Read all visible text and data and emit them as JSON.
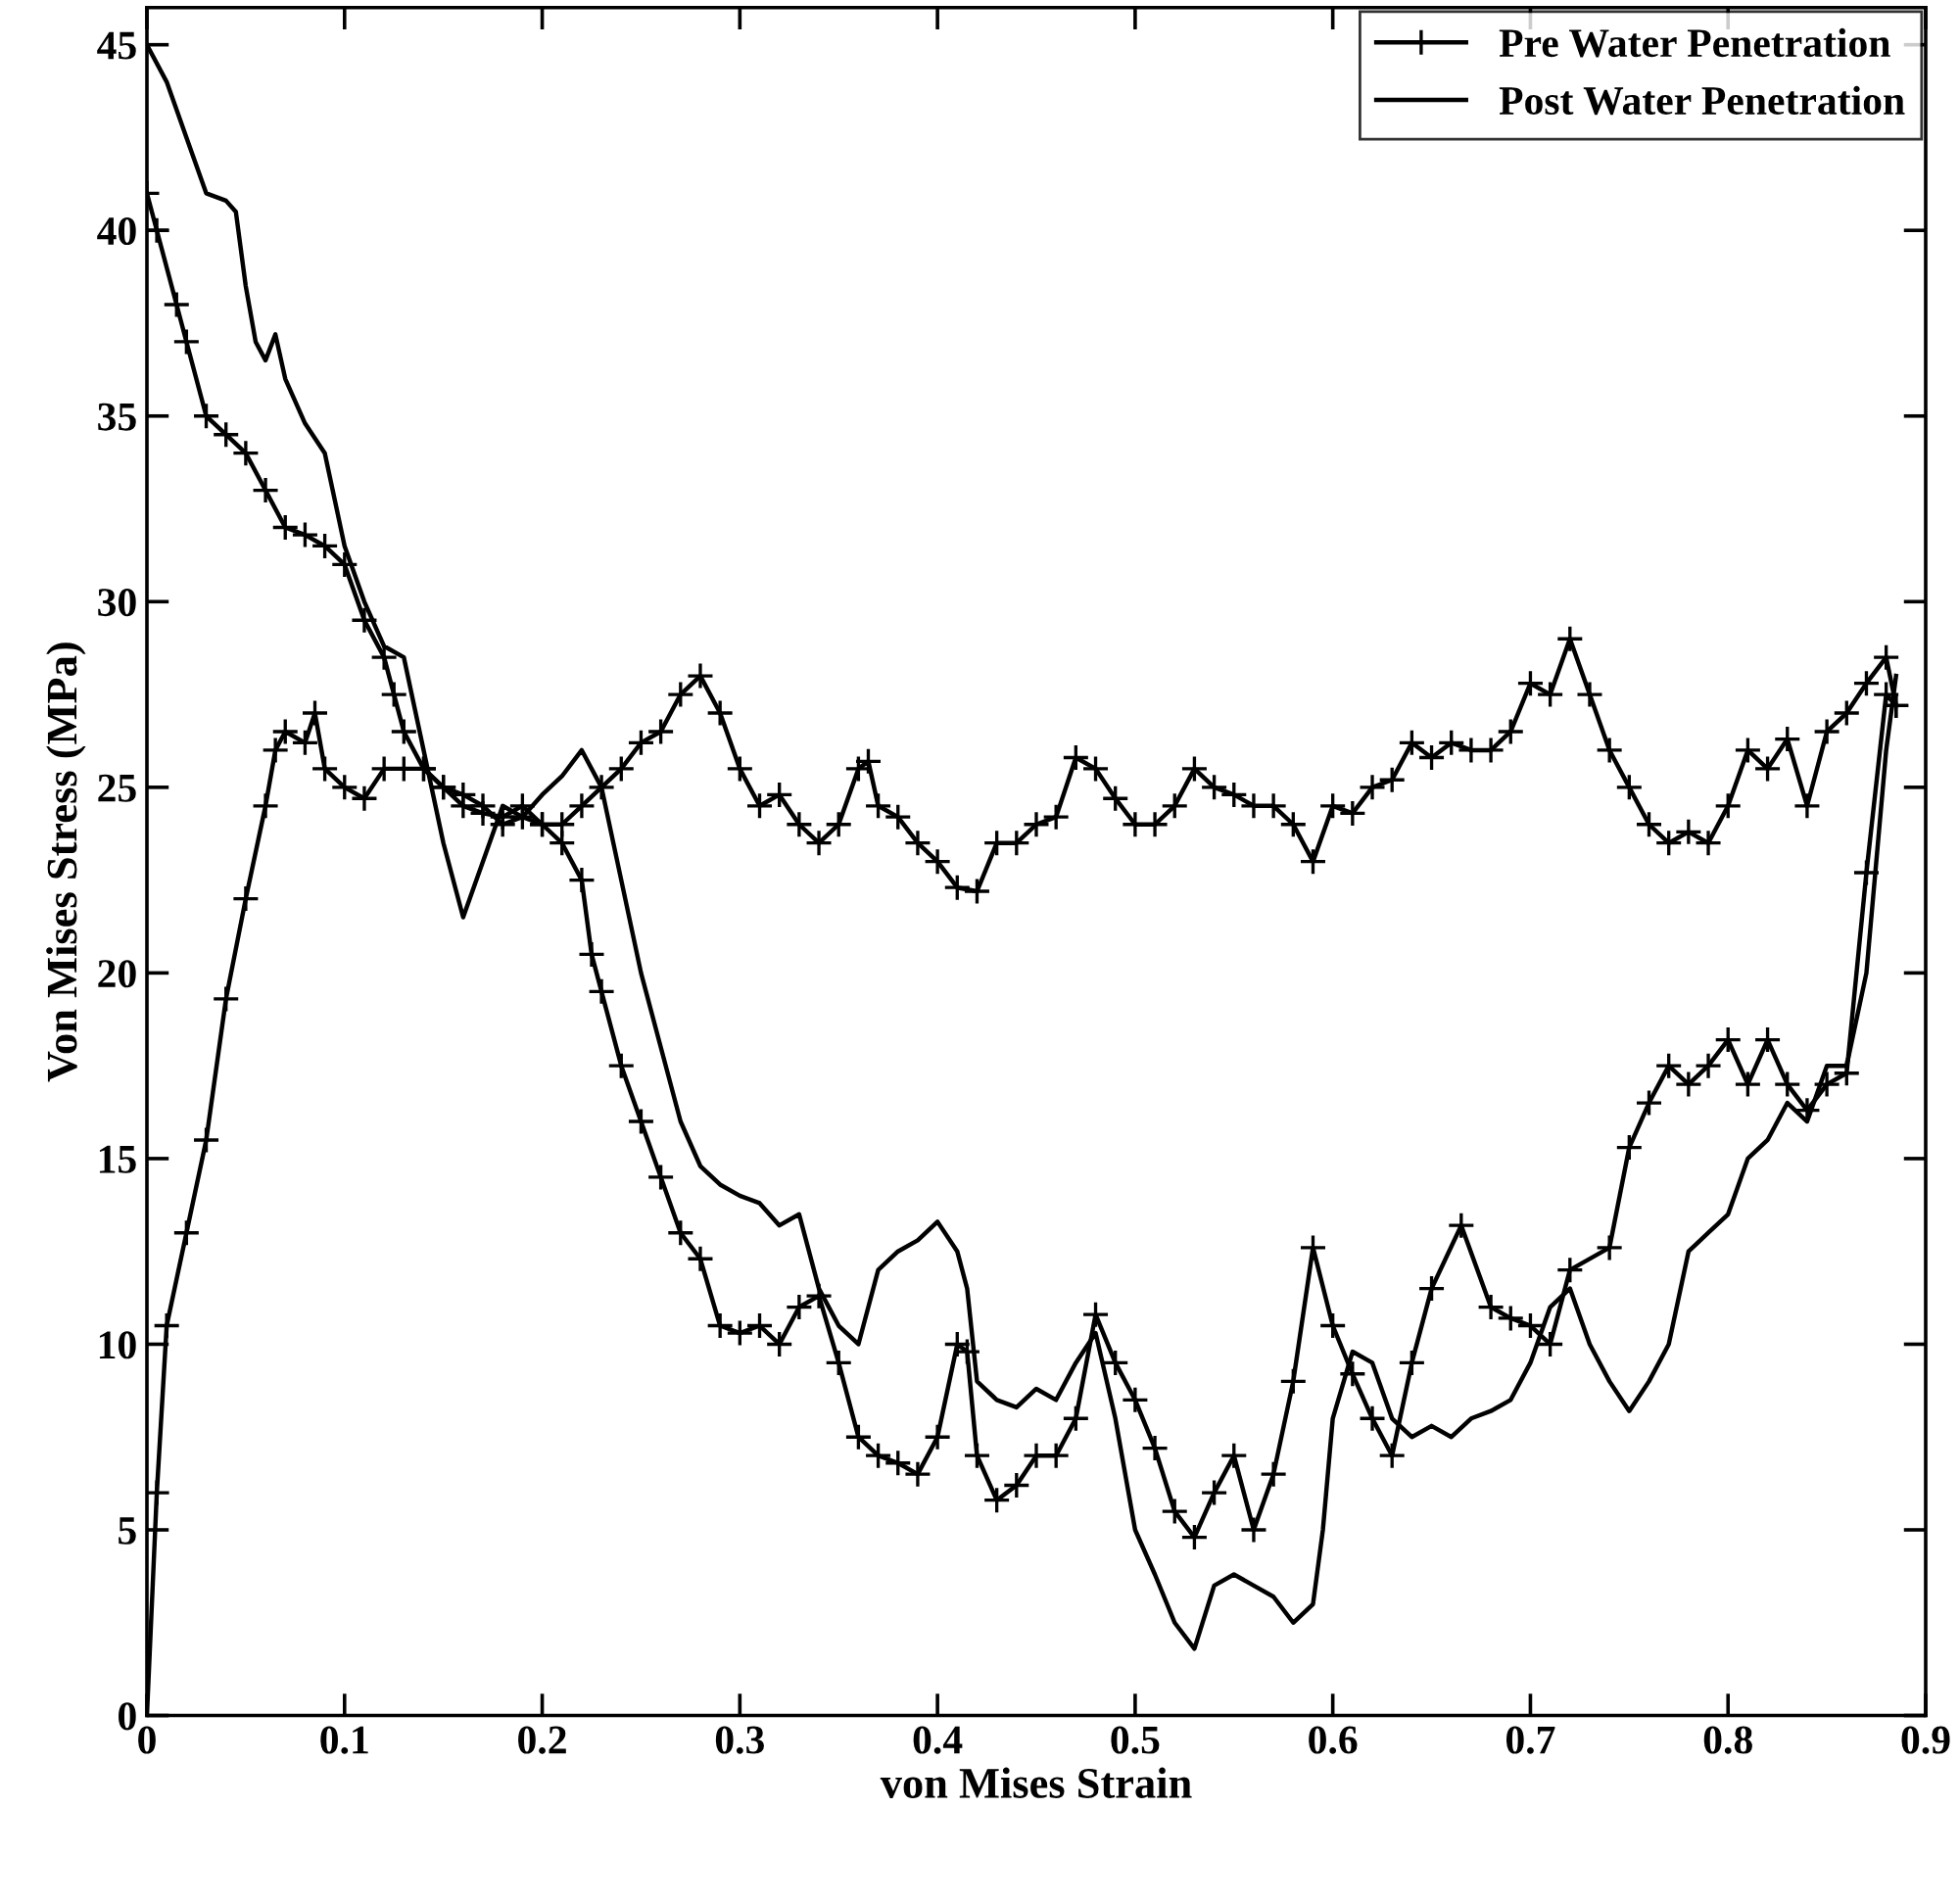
{
  "chart_data": {
    "type": "line",
    "xlabel": "von Mises Strain",
    "ylabel": "Von Mises Stress (MPa)",
    "xlim": [
      0,
      0.9
    ],
    "ylim": [
      0,
      46
    ],
    "xticks": [
      0,
      0.1,
      0.2,
      0.3,
      0.4,
      0.5,
      0.6,
      0.7,
      0.8,
      0.9
    ],
    "yticks": [
      0,
      5,
      10,
      15,
      20,
      25,
      30,
      35,
      40,
      45
    ],
    "grid": false,
    "legend": "top right",
    "line_style": "solid",
    "series": [
      {
        "name": "Pre Water Penetration",
        "color": "#000000",
        "marker": "cross",
        "x": [
          0,
          0.005,
          0.015,
          0.02,
          0.03,
          0.04,
          0.05,
          0.06,
          0.07,
          0.08,
          0.09,
          0.1,
          0.11,
          0.12,
          0.125,
          0.13,
          0.14,
          0.15,
          0.16,
          0.17,
          0.18,
          0.19,
          0.2,
          0.21,
          0.22,
          0.225,
          0.23,
          0.24,
          0.25,
          0.26,
          0.27,
          0.28,
          0.29,
          0.3,
          0.31,
          0.32,
          0.33,
          0.34,
          0.35,
          0.36,
          0.37,
          0.38,
          0.39,
          0.4,
          0.41,
          0.415,
          0.42,
          0.43,
          0.44,
          0.45,
          0.46,
          0.47,
          0.48,
          0.49,
          0.5,
          0.51,
          0.52,
          0.53,
          0.54,
          0.55,
          0.56,
          0.57,
          0.58,
          0.59,
          0.6,
          0.61,
          0.62,
          0.63,
          0.64,
          0.65,
          0.665,
          0.68,
          0.69,
          0.7,
          0.71,
          0.72,
          0.74,
          0.75,
          0.76,
          0.77,
          0.78,
          0.79,
          0.8,
          0.81,
          0.82,
          0.83,
          0.84,
          0.85,
          0.86,
          0.87,
          0.88,
          0.885
        ],
        "values": [
          41,
          40,
          38,
          37,
          35,
          34.5,
          34,
          33,
          32,
          31.8,
          31.5,
          31,
          29.5,
          28.5,
          27.5,
          26.5,
          25.5,
          25,
          24.8,
          24.5,
          24,
          24.2,
          24,
          23.5,
          22.5,
          20.5,
          19.5,
          17.5,
          16,
          14.5,
          13,
          12.3,
          10.5,
          10.3,
          10.5,
          10,
          11,
          11.3,
          9.5,
          7.5,
          7,
          6.8,
          6.5,
          7.5,
          10,
          9.8,
          7,
          5.8,
          6.2,
          7,
          7,
          8,
          10.8,
          9.5,
          8.5,
          7.2,
          5.5,
          4.8,
          6,
          7,
          5,
          6.5,
          9,
          12.6,
          10.5,
          9.2,
          8,
          7,
          9.5,
          11.5,
          13.2,
          11,
          10.7,
          10.5,
          10,
          12,
          12.6,
          15.3,
          16.5,
          17.5,
          17,
          17.5,
          18.2,
          17,
          18.2,
          17,
          16.3,
          17,
          17.3,
          22.7,
          27.5,
          27.2
        ]
      },
      {
        "name": "Post Water Penetration",
        "color": "#000000",
        "marker": "none",
        "x": [
          0,
          0.01,
          0.02,
          0.03,
          0.04,
          0.045,
          0.05,
          0.055,
          0.06,
          0.065,
          0.07,
          0.08,
          0.09,
          0.1,
          0.11,
          0.12,
          0.13,
          0.14,
          0.15,
          0.16,
          0.17,
          0.18,
          0.19,
          0.2,
          0.21,
          0.22,
          0.23,
          0.24,
          0.25,
          0.26,
          0.27,
          0.28,
          0.29,
          0.3,
          0.31,
          0.32,
          0.33,
          0.34,
          0.35,
          0.36,
          0.37,
          0.38,
          0.39,
          0.4,
          0.41,
          0.415,
          0.42,
          0.43,
          0.44,
          0.45,
          0.46,
          0.47,
          0.48,
          0.49,
          0.5,
          0.51,
          0.52,
          0.53,
          0.54,
          0.55,
          0.56,
          0.57,
          0.58,
          0.59,
          0.595,
          0.6,
          0.61,
          0.62,
          0.63,
          0.64,
          0.65,
          0.66,
          0.67,
          0.68,
          0.69,
          0.7,
          0.71,
          0.72,
          0.73,
          0.74,
          0.75,
          0.76,
          0.77,
          0.78,
          0.79,
          0.8,
          0.81,
          0.82,
          0.83,
          0.84,
          0.85,
          0.86,
          0.87,
          0.88,
          0.885
        ],
        "values": [
          45,
          44,
          42.5,
          41,
          40.8,
          40.5,
          38.5,
          37,
          36.5,
          37.2,
          36,
          34.8,
          34,
          31.5,
          30,
          28.8,
          28.5,
          26,
          23.5,
          21.5,
          23,
          24.5,
          24.2,
          24.8,
          25.3,
          26,
          25,
          22.5,
          20,
          18,
          16,
          14.8,
          14.3,
          14,
          13.8,
          13.2,
          13.5,
          11.5,
          10.5,
          10,
          12,
          12.5,
          12.8,
          13.3,
          12.5,
          11.5,
          9,
          8.5,
          8.3,
          8.8,
          8.5,
          9.5,
          10.3,
          8,
          5,
          3.8,
          2.5,
          1.8,
          3.5,
          3.8,
          3.5,
          3.2,
          2.5,
          3,
          5,
          8,
          9.8,
          9.5,
          8,
          7.5,
          7.8,
          7.5,
          8,
          8.2,
          8.5,
          9.5,
          11,
          11.5,
          10,
          9,
          8.2,
          9,
          10,
          12.5,
          13,
          13.5,
          15,
          15.5,
          16.5,
          16,
          17.5,
          17.5,
          20,
          26,
          28
        ]
      },
      {
        "color": "#000000",
        "marker": "cross",
        "x": [
          0,
          0.005,
          0.01,
          0.02,
          0.03,
          0.04,
          0.05,
          0.06,
          0.065,
          0.07,
          0.08,
          0.085,
          0.09,
          0.1,
          0.11,
          0.12,
          0.13,
          0.14,
          0.15,
          0.16,
          0.17,
          0.18,
          0.19,
          0.2,
          0.21,
          0.22,
          0.23,
          0.24,
          0.25,
          0.26,
          0.27,
          0.28,
          0.29,
          0.3,
          0.31,
          0.32,
          0.33,
          0.34,
          0.35,
          0.36,
          0.365,
          0.37,
          0.38,
          0.39,
          0.4,
          0.41,
          0.42,
          0.43,
          0.44,
          0.45,
          0.46,
          0.47,
          0.48,
          0.49,
          0.5,
          0.51,
          0.52,
          0.53,
          0.54,
          0.55,
          0.56,
          0.57,
          0.58,
          0.59,
          0.6,
          0.61,
          0.62,
          0.63,
          0.64,
          0.65,
          0.66,
          0.67,
          0.68,
          0.69,
          0.7,
          0.71,
          0.72,
          0.73,
          0.74,
          0.75,
          0.76,
          0.77,
          0.78,
          0.79,
          0.8,
          0.81,
          0.82,
          0.83,
          0.84,
          0.85,
          0.86,
          0.87,
          0.88,
          0.885
        ],
        "values": [
          0,
          6,
          10.5,
          13,
          15.5,
          19.3,
          22,
          24.5,
          26,
          26.5,
          26.2,
          27,
          25.5,
          25,
          24.7,
          25.5,
          25.5,
          25.5,
          25,
          24.5,
          24.3,
          24.2,
          24.5,
          24,
          24,
          24.5,
          25,
          25.5,
          26.2,
          26.5,
          27.5,
          28,
          27,
          25.5,
          24.5,
          24.8,
          24,
          23.5,
          24,
          25.5,
          25.7,
          24.5,
          24.2,
          23.5,
          23,
          22.3,
          22.2,
          23.5,
          23.5,
          24,
          24.2,
          25.8,
          25.5,
          24.7,
          24,
          24,
          24.5,
          25.5,
          25,
          24.8,
          24.5,
          24.5,
          24,
          23,
          24.5,
          24.3,
          25,
          25.2,
          26.2,
          25.8,
          26.2,
          26,
          26,
          26.5,
          27.8,
          27.5,
          29,
          27.5,
          26,
          25,
          24,
          23.5,
          23.8,
          23.5,
          24.5,
          26,
          25.5,
          26.3,
          24.5,
          26.5,
          27,
          27.8,
          28.5,
          27.2
        ]
      }
    ]
  }
}
